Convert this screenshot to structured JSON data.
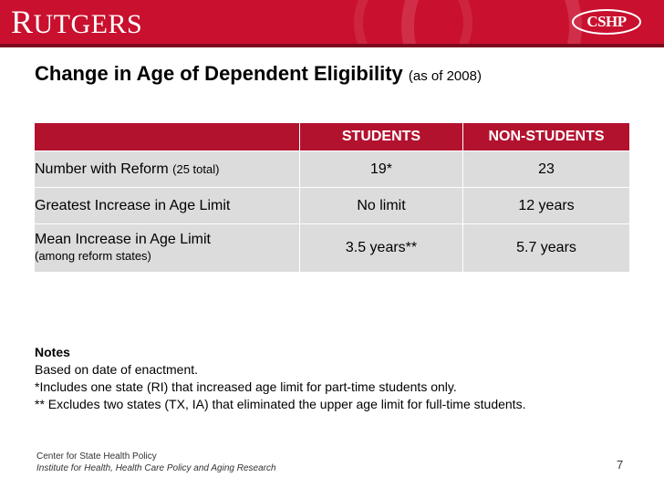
{
  "header": {
    "left_logo": "RUTGERS",
    "right_logo": "CSHP",
    "colors": {
      "banner": "#c9102e",
      "table_header": "#b3122f",
      "row_fill": "#dcdcdc"
    }
  },
  "title": {
    "main": "Change in Age of Dependent Eligibility",
    "sub": "(as of 2008)"
  },
  "table": {
    "columns": [
      "",
      "STUDENTS",
      "NON-STUDENTS"
    ],
    "rows": [
      {
        "label": "Number with Reform",
        "label_note": "(25 total)",
        "students": "19*",
        "non_students": "23"
      },
      {
        "label": "Greatest Increase in Age Limit",
        "label_note": "",
        "students": "No limit",
        "non_students": "12 years"
      },
      {
        "label": "Mean Increase in Age Limit",
        "label_note": "(among reform states)",
        "students": "3.5 years**",
        "non_students": "5.7 years"
      }
    ]
  },
  "notes": {
    "heading": "Notes",
    "lines": [
      "Based on date of enactment.",
      "*Includes one state (RI) that increased age limit for part-time students only.",
      "** Excludes two states (TX, IA) that eliminated the upper age limit for full-time students."
    ]
  },
  "footer": {
    "line1": "Center for State Health Policy",
    "line2": "Institute for Health, Health Care Policy and Aging Research",
    "page_number": "7"
  }
}
